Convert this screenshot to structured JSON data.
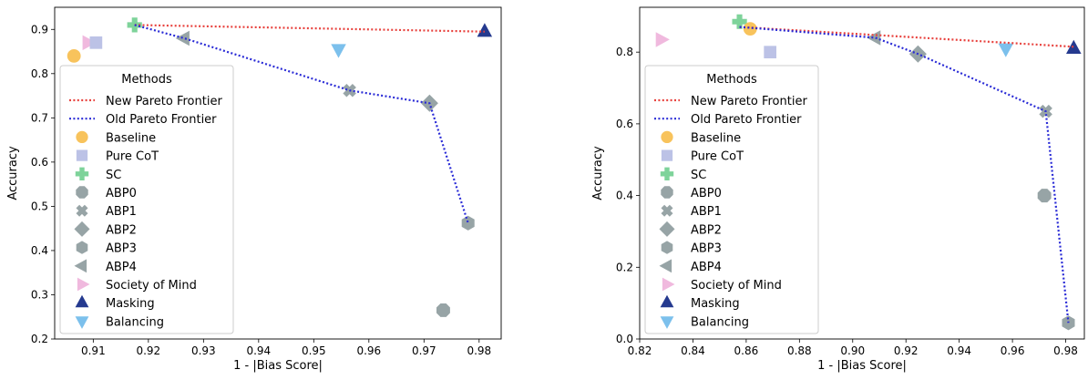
{
  "chart_data": [
    {
      "type": "scatter",
      "title": "",
      "xlabel": "1 - |Bias Score|",
      "ylabel": "Accuracy",
      "xlim": [
        0.903,
        0.984
      ],
      "ylim": [
        0.2,
        0.95
      ],
      "xticks": [
        0.91,
        0.92,
        0.93,
        0.94,
        0.95,
        0.96,
        0.97,
        0.98
      ],
      "xtick_labels": [
        "0.91",
        "0.92",
        "0.93",
        "0.94",
        "0.95",
        "0.96",
        "0.97",
        "0.98"
      ],
      "yticks": [
        0.2,
        0.3,
        0.4,
        0.5,
        0.6,
        0.7,
        0.8,
        0.9
      ],
      "ytick_labels": [
        "0.2",
        "0.3",
        "0.4",
        "0.5",
        "0.6",
        "0.7",
        "0.8",
        "0.9"
      ],
      "grid": false,
      "legend_position": "bottom-left",
      "points": [
        {
          "method": "Baseline",
          "x": 0.9065,
          "y": 0.84
        },
        {
          "method": "Society of Mind",
          "x": 0.909,
          "y": 0.87
        },
        {
          "method": "Pure CoT",
          "x": 0.9105,
          "y": 0.87
        },
        {
          "method": "SC",
          "x": 0.9175,
          "y": 0.91
        },
        {
          "method": "ABP4",
          "x": 0.9265,
          "y": 0.88
        },
        {
          "method": "Balancing",
          "x": 0.9545,
          "y": 0.855
        },
        {
          "method": "ABP1",
          "x": 0.9565,
          "y": 0.762
        },
        {
          "method": "ABP2",
          "x": 0.971,
          "y": 0.733
        },
        {
          "method": "ABP3",
          "x": 0.978,
          "y": 0.462
        },
        {
          "method": "ABP0",
          "x": 0.9735,
          "y": 0.265
        },
        {
          "method": "Masking",
          "x": 0.981,
          "y": 0.895
        }
      ],
      "lines": [
        {
          "name": "New Pareto Frontier",
          "x": [
            0.9175,
            0.981
          ],
          "y": [
            0.91,
            0.895
          ]
        },
        {
          "name": "Old Pareto Frontier",
          "x": [
            0.9175,
            0.9265,
            0.9565,
            0.971,
            0.978
          ],
          "y": [
            0.91,
            0.88,
            0.762,
            0.733,
            0.462
          ]
        }
      ]
    },
    {
      "type": "scatter",
      "title": "",
      "xlabel": "1 - |Bias Score|",
      "ylabel": "Accuracy",
      "xlim": [
        0.82,
        0.987
      ],
      "ylim": [
        0.0,
        0.925
      ],
      "xticks": [
        0.82,
        0.84,
        0.86,
        0.88,
        0.9,
        0.92,
        0.94,
        0.96,
        0.98
      ],
      "xtick_labels": [
        "0.82",
        "0.84",
        "0.86",
        "0.88",
        "0.90",
        "0.92",
        "0.94",
        "0.96",
        "0.98"
      ],
      "yticks": [
        0.0,
        0.2,
        0.4,
        0.6,
        0.8
      ],
      "ytick_labels": [
        "0.0",
        "0.2",
        "0.4",
        "0.6",
        "0.8"
      ],
      "grid": false,
      "legend_position": "bottom-left",
      "points": [
        {
          "method": "Society of Mind",
          "x": 0.828,
          "y": 0.835
        },
        {
          "method": "SC",
          "x": 0.8575,
          "y": 0.885
        },
        {
          "method": "Baseline",
          "x": 0.8615,
          "y": 0.865
        },
        {
          "method": "Pure CoT",
          "x": 0.869,
          "y": 0.8
        },
        {
          "method": "ABP4",
          "x": 0.9085,
          "y": 0.84
        },
        {
          "method": "ABP2",
          "x": 0.9245,
          "y": 0.795
        },
        {
          "method": "Balancing",
          "x": 0.9575,
          "y": 0.81
        },
        {
          "method": "ABP0",
          "x": 0.972,
          "y": 0.4
        },
        {
          "method": "ABP1",
          "x": 0.9725,
          "y": 0.635
        },
        {
          "method": "ABP3",
          "x": 0.981,
          "y": 0.045
        },
        {
          "method": "Masking",
          "x": 0.983,
          "y": 0.81
        }
      ],
      "lines": [
        {
          "name": "New Pareto Frontier",
          "x": [
            0.8575,
            0.983
          ],
          "y": [
            0.87,
            0.815
          ]
        },
        {
          "name": "Old Pareto Frontier",
          "x": [
            0.8575,
            0.9085,
            0.9245,
            0.9725,
            0.981
          ],
          "y": [
            0.87,
            0.84,
            0.795,
            0.635,
            0.045
          ]
        }
      ]
    }
  ],
  "legend": {
    "title": "Methods",
    "line_entries": [
      {
        "name": "New Pareto Frontier",
        "color": "#e8433f"
      },
      {
        "name": "Old Pareto Frontier",
        "color": "#2a2bd6"
      }
    ],
    "marker_entries": [
      {
        "name": "Baseline",
        "shape": "circle",
        "color": "#f8c35c"
      },
      {
        "name": "Pure CoT",
        "shape": "square",
        "color": "#bcc2e6"
      },
      {
        "name": "SC",
        "shape": "plus",
        "color": "#7ed39a"
      },
      {
        "name": "ABP0",
        "shape": "octagon",
        "color": "#97a4a6"
      },
      {
        "name": "ABP1",
        "shape": "x",
        "color": "#97a4a6"
      },
      {
        "name": "ABP2",
        "shape": "diamond",
        "color": "#97a4a6"
      },
      {
        "name": "ABP3",
        "shape": "hexagon",
        "color": "#97a4a6"
      },
      {
        "name": "ABP4",
        "shape": "triangle-left",
        "color": "#97a4a6"
      },
      {
        "name": "Society of Mind",
        "shape": "triangle-right",
        "color": "#f0b9de"
      },
      {
        "name": "Masking",
        "shape": "triangle-up",
        "color": "#253a8f"
      },
      {
        "name": "Balancing",
        "shape": "triangle-down",
        "color": "#7cc0ec"
      }
    ]
  }
}
